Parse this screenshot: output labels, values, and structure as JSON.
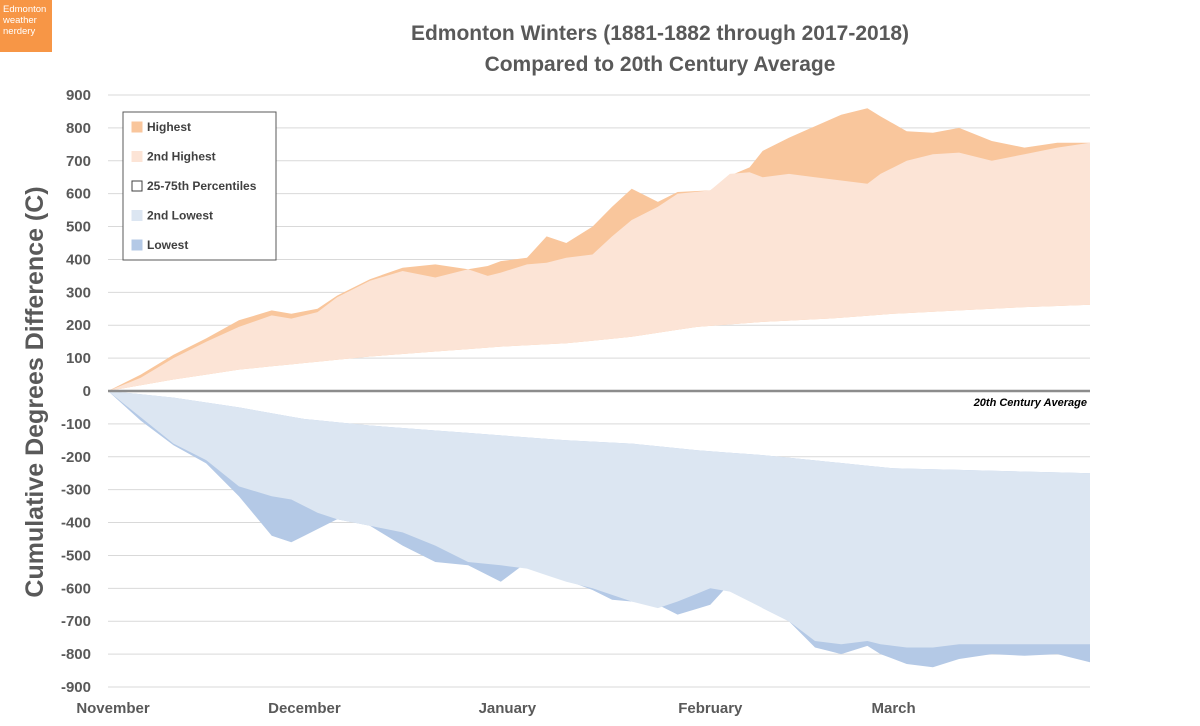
{
  "badge": {
    "lines": [
      "Edmonton",
      "weather",
      "nerdery"
    ]
  },
  "chart_data": {
    "type": "area",
    "title": "Edmonton Winters (1881-1882 through 2017-2018)",
    "subtitle": "Compared to 20th Century Average",
    "xlabel": "",
    "ylabel": "Cumulative Degrees Difference (C)",
    "ylim": [
      -900,
      900
    ],
    "yticks": [
      900,
      800,
      700,
      600,
      500,
      400,
      300,
      200,
      100,
      0,
      -100,
      -200,
      -300,
      -400,
      -500,
      -600,
      -700,
      -800,
      -900
    ],
    "xlim": [
      0,
      150
    ],
    "month_labels": [
      "November",
      "December",
      "January",
      "February",
      "March"
    ],
    "month_positions": [
      0,
      30,
      61,
      92,
      120
    ],
    "zero_line_label": "20th Century Average",
    "legend": {
      "position": "top-left",
      "entries": [
        {
          "label": "Highest",
          "color": "#f9c69c"
        },
        {
          "label": "2nd Highest",
          "color": "#fce4d6"
        },
        {
          "label": "25-75th Percentiles",
          "color": "#ffffff"
        },
        {
          "label": "2nd Lowest",
          "color": "#dce6f2"
        },
        {
          "label": "Lowest",
          "color": "#b4c9e6"
        }
      ]
    },
    "series": [
      {
        "name": "Highest",
        "color": "#f9c69c",
        "x": [
          0,
          5,
          10,
          15,
          20,
          25,
          28,
          32,
          35,
          40,
          45,
          50,
          55,
          58,
          60,
          64,
          67,
          70,
          74,
          77,
          80,
          84,
          87,
          92,
          95,
          98,
          100,
          104,
          108,
          112,
          116,
          118,
          122,
          126,
          130,
          135,
          140,
          145,
          150
        ],
        "values": [
          0,
          50,
          110,
          160,
          215,
          245,
          235,
          250,
          290,
          340,
          375,
          385,
          370,
          380,
          395,
          405,
          470,
          450,
          500,
          560,
          615,
          575,
          605,
          610,
          655,
          680,
          730,
          770,
          805,
          840,
          860,
          835,
          790,
          785,
          800,
          760,
          740,
          755,
          755
        ]
      },
      {
        "name": "2nd Highest",
        "color": "#fce4d6",
        "x": [
          0,
          5,
          10,
          15,
          20,
          25,
          28,
          32,
          35,
          40,
          45,
          50,
          55,
          58,
          60,
          64,
          67,
          70,
          74,
          77,
          80,
          84,
          87,
          92,
          95,
          98,
          100,
          104,
          108,
          112,
          116,
          118,
          122,
          126,
          130,
          135,
          140,
          145,
          150
        ],
        "values": [
          0,
          40,
          100,
          150,
          195,
          230,
          220,
          240,
          285,
          335,
          365,
          345,
          370,
          350,
          360,
          385,
          390,
          405,
          415,
          470,
          520,
          560,
          600,
          610,
          660,
          665,
          650,
          660,
          650,
          640,
          630,
          660,
          700,
          720,
          725,
          700,
          720,
          740,
          755
        ]
      },
      {
        "name": "25th Percentile (positive band bottom)",
        "color": "#ffffff",
        "x": [
          0,
          10,
          20,
          30,
          40,
          50,
          60,
          70,
          80,
          90,
          100,
          110,
          120,
          130,
          140,
          150
        ],
        "values": [
          0,
          35,
          65,
          85,
          105,
          120,
          135,
          145,
          165,
          195,
          210,
          220,
          235,
          245,
          255,
          262
        ]
      },
      {
        "name": "75th Percentile (negative band top)",
        "color": "#ffffff",
        "x": [
          0,
          10,
          20,
          30,
          40,
          50,
          60,
          70,
          80,
          90,
          100,
          110,
          120,
          130,
          140,
          150
        ],
        "values": [
          0,
          -20,
          -50,
          -85,
          -105,
          -120,
          -135,
          -150,
          -160,
          -180,
          -195,
          -215,
          -235,
          -240,
          -245,
          -250
        ]
      },
      {
        "name": "2nd Lowest",
        "color": "#dce6f2",
        "x": [
          0,
          5,
          10,
          15,
          20,
          25,
          28,
          32,
          35,
          40,
          45,
          50,
          55,
          60,
          64,
          67,
          70,
          74,
          77,
          80,
          84,
          87,
          92,
          95,
          98,
          100,
          104,
          108,
          112,
          116,
          118,
          122,
          126,
          130,
          135,
          140,
          145,
          150
        ],
        "values": [
          0,
          -80,
          -160,
          -210,
          -290,
          -320,
          -330,
          -370,
          -390,
          -410,
          -430,
          -470,
          -520,
          -530,
          -540,
          -560,
          -580,
          -600,
          -620,
          -640,
          -660,
          -640,
          -600,
          -610,
          -640,
          -660,
          -700,
          -760,
          -770,
          -760,
          -770,
          -780,
          -780,
          -770,
          -770,
          -770,
          -770,
          -770
        ]
      },
      {
        "name": "Lowest",
        "color": "#b4c9e6",
        "x": [
          0,
          5,
          10,
          15,
          20,
          25,
          28,
          32,
          35,
          40,
          45,
          50,
          55,
          60,
          64,
          67,
          70,
          74,
          77,
          80,
          84,
          87,
          92,
          95,
          98,
          100,
          104,
          108,
          112,
          116,
          118,
          122,
          126,
          130,
          135,
          140,
          145,
          150
        ],
        "values": [
          0,
          -90,
          -165,
          -220,
          -320,
          -440,
          -460,
          -420,
          -390,
          -410,
          -470,
          -520,
          -530,
          -580,
          -520,
          -540,
          -575,
          -605,
          -635,
          -640,
          -650,
          -680,
          -650,
          -585,
          -630,
          -660,
          -700,
          -780,
          -800,
          -775,
          -800,
          -830,
          -840,
          -815,
          -800,
          -805,
          -800,
          -825
        ]
      }
    ]
  }
}
